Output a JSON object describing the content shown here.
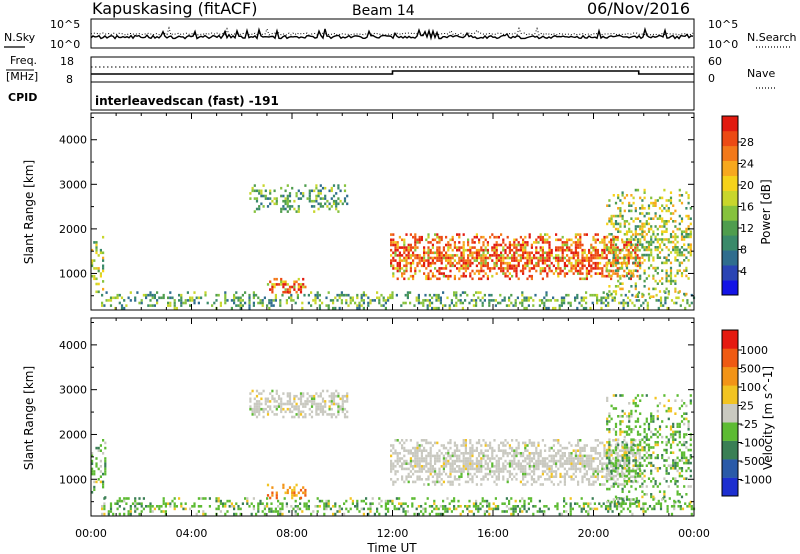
{
  "header": {
    "station": "Kapuskasing (fitACF)",
    "beam": "Beam 14",
    "date": "06/Nov/2016"
  },
  "noise_panel": {
    "left_label": "N.Sky",
    "left_ticks": [
      "10^5",
      "10^0"
    ],
    "right_label": "N.Search",
    "right_ticks": [
      "10^5",
      "10^0"
    ]
  },
  "freq_panel": {
    "left_label_1": "Freq.",
    "left_label_2": "[MHz]",
    "left_ticks": [
      "18",
      "8"
    ],
    "right_label": "Nave",
    "right_ticks": [
      "60",
      "0"
    ]
  },
  "cpid": {
    "label": "CPID",
    "text": "interleavedscan (fast) -191"
  },
  "time_axis": {
    "ticks": [
      "00:00",
      "04:00",
      "08:00",
      "12:00",
      "16:00",
      "20:00",
      "00:00"
    ],
    "label": "Time UT"
  },
  "chart_data": [
    {
      "type": "heatmap",
      "name": "power",
      "xlabel": "Time UT",
      "ylabel": "Slant Range [km]",
      "xlim": [
        0,
        24
      ],
      "ylim": [
        180,
        4600
      ],
      "yticks": [
        "1000",
        "2000",
        "3000",
        "4000"
      ],
      "colorbar_label": "Power [dB]",
      "colorbar_ticks": [
        "28",
        "24",
        "20",
        "16",
        "12",
        "8",
        "4"
      ],
      "colorscale": [
        "#1414e6",
        "#2a44b4",
        "#2f6d8e",
        "#3a8a6a",
        "#4f9d4e",
        "#86c23d",
        "#c8d62c",
        "#f5d21a",
        "#f7a81e",
        "#f3791a",
        "#ec4a14",
        "#e21b10"
      ],
      "echo_regions": [
        {
          "t": [
            0.0,
            0.5
          ],
          "range": [
            600,
            1900
          ],
          "level": "mid"
        },
        {
          "t": [
            0.4,
            24.0
          ],
          "range": [
            200,
            600
          ],
          "level": "low"
        },
        {
          "t": [
            6.3,
            10.2
          ],
          "range": [
            2400,
            3000
          ],
          "level": "low"
        },
        {
          "t": [
            7.0,
            8.5
          ],
          "range": [
            600,
            900
          ],
          "level": "high"
        },
        {
          "t": [
            11.9,
            21.8
          ],
          "range": [
            900,
            1900
          ],
          "level": "high"
        },
        {
          "t": [
            20.5,
            23.9
          ],
          "range": [
            500,
            2900
          ],
          "level": "mid"
        }
      ]
    },
    {
      "type": "heatmap",
      "name": "velocity",
      "xlabel": "Time UT",
      "ylabel": "Slant Range [km]",
      "xlim": [
        0,
        24
      ],
      "ylim": [
        180,
        4600
      ],
      "yticks": [
        "1000",
        "2000",
        "3000",
        "4000"
      ],
      "colorbar_label": "Velocity [m s^-1]",
      "colorbar_ticks": [
        "1000",
        "500",
        "100",
        "25",
        "-25",
        "-100",
        "-500",
        "-1000"
      ],
      "colorscale": [
        "#1d2fd0",
        "#2a5aa8",
        "#3a7f55",
        "#5dbb33",
        "#c9c9c0",
        "#f2c422",
        "#f39417",
        "#ef5a12",
        "#e51a10"
      ],
      "echo_regions": [
        {
          "t": [
            0.0,
            0.6
          ],
          "range": [
            600,
            1900
          ],
          "level": "green"
        },
        {
          "t": [
            0.4,
            24.0
          ],
          "range": [
            200,
            600
          ],
          "level": "green"
        },
        {
          "t": [
            6.3,
            10.2
          ],
          "range": [
            2400,
            3000
          ],
          "level": "gray"
        },
        {
          "t": [
            7.0,
            8.5
          ],
          "range": [
            600,
            900
          ],
          "level": "orange"
        },
        {
          "t": [
            11.9,
            21.8
          ],
          "range": [
            900,
            1900
          ],
          "level": "gray"
        },
        {
          "t": [
            20.5,
            23.9
          ],
          "range": [
            500,
            2900
          ],
          "level": "green"
        }
      ]
    }
  ]
}
